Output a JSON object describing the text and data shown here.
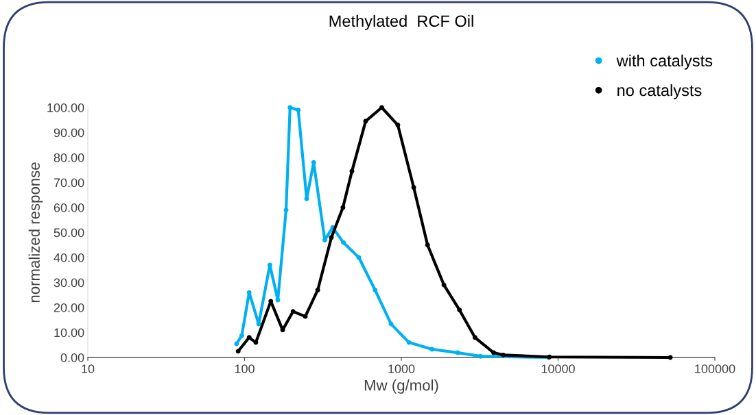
{
  "chart_data": {
    "type": "line",
    "title": "Methylated  RCF Oil",
    "xlabel": "Mw (g/mol)",
    "ylabel": "normalized response",
    "log": "x",
    "xlim": [
      10,
      100000
    ],
    "xticks": [
      10,
      100,
      1000,
      10000,
      100000
    ],
    "ylim": [
      0,
      100
    ],
    "yticks": [
      {
        "value": 0,
        "label": "0.00"
      },
      {
        "value": 10,
        "label": "10.00"
      },
      {
        "value": 20,
        "label": "20.00"
      },
      {
        "value": 30,
        "label": "30.00"
      },
      {
        "value": 40,
        "label": "40.00"
      },
      {
        "value": 50,
        "label": "50.00"
      },
      {
        "value": 60,
        "label": "60.00"
      },
      {
        "value": 70,
        "label": "70.00"
      },
      {
        "value": 80,
        "label": "80.00"
      },
      {
        "value": 90,
        "label": "90.00"
      },
      {
        "value": 100,
        "label": "100.00"
      }
    ],
    "grid": false,
    "legend": "top right",
    "marker": "circle",
    "line_style": "solid",
    "series": [
      {
        "name": "with catalysts",
        "color": "#00b0f0",
        "x": [
          89,
          96,
          107,
          123,
          145,
          163,
          184,
          195,
          220,
          249,
          276,
          325,
          365,
          427,
          536,
          680,
          860,
          1120,
          1570,
          2290,
          3200,
          8700
        ],
        "values": [
          5.5,
          8.8,
          26,
          13.4,
          37,
          23,
          59,
          100,
          99,
          63.5,
          78,
          47,
          52,
          46,
          40,
          27,
          13.4,
          6,
          3.3,
          1.9,
          0.5,
          0
        ]
      },
      {
        "name": "no catalysts",
        "color": "#000000",
        "x": [
          91,
          107,
          118,
          147,
          175,
          204,
          244,
          293,
          358,
          424,
          484,
          592,
          750,
          950,
          1200,
          1470,
          1870,
          2350,
          2950,
          3880,
          4470,
          8800,
          52000
        ],
        "values": [
          2.5,
          8,
          6,
          22.5,
          11,
          18.4,
          16.4,
          27,
          48,
          60,
          74.5,
          94.5,
          100,
          93,
          68,
          45,
          29,
          19,
          8,
          1.9,
          1,
          0.2,
          0
        ]
      }
    ]
  }
}
